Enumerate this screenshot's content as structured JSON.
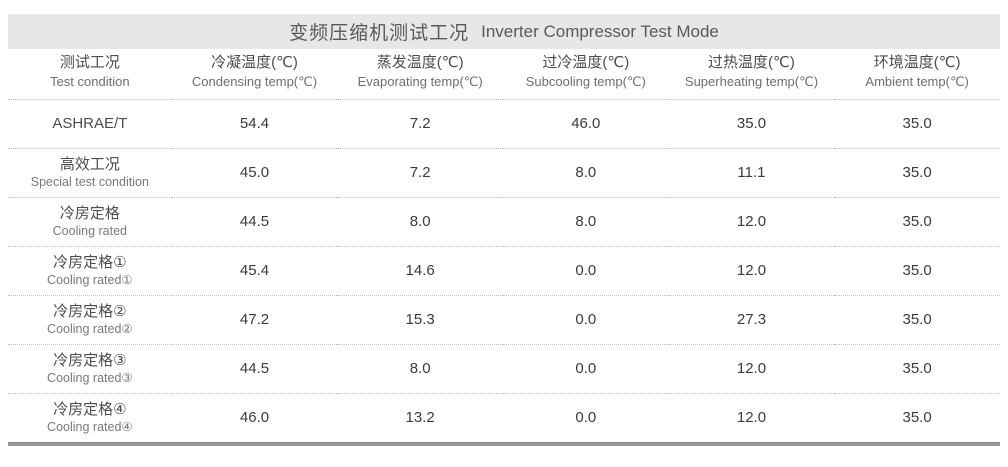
{
  "title": {
    "zh": "变频压缩机测试工况",
    "en": "Inverter Compressor Test Mode"
  },
  "table": {
    "columns": [
      {
        "zh": "测试工况",
        "en": "Test condition"
      },
      {
        "zh": "冷凝温度(℃)",
        "en": "Condensing temp(℃)"
      },
      {
        "zh": "蒸发温度(℃)",
        "en": "Evaporating temp(℃)"
      },
      {
        "zh": "过冷温度(℃)",
        "en": "Subcooling temp(℃)"
      },
      {
        "zh": "过热温度(℃)",
        "en": "Superheating temp(℃)"
      },
      {
        "zh": "环境温度(℃)",
        "en": "Ambient temp(℃)"
      }
    ],
    "rows": [
      {
        "label_zh": "ASHRAE/T",
        "label_en": "",
        "values": [
          "54.4",
          "7.2",
          "46.0",
          "35.0",
          "35.0"
        ]
      },
      {
        "label_zh": "高效工况",
        "label_en": "Special test condition",
        "values": [
          "45.0",
          "7.2",
          "8.0",
          "11.1",
          "35.0"
        ]
      },
      {
        "label_zh": "冷房定格",
        "label_en": "Cooling rated",
        "values": [
          "44.5",
          "8.0",
          "8.0",
          "12.0",
          "35.0"
        ]
      },
      {
        "label_zh": "冷房定格①",
        "label_en": "Cooling rated①",
        "values": [
          "45.4",
          "14.6",
          "0.0",
          "12.0",
          "35.0"
        ]
      },
      {
        "label_zh": "冷房定格②",
        "label_en": "Cooling rated②",
        "values": [
          "47.2",
          "15.3",
          "0.0",
          "27.3",
          "35.0"
        ]
      },
      {
        "label_zh": "冷房定格③",
        "label_en": "Cooling rated③",
        "values": [
          "44.5",
          "8.0",
          "0.0",
          "12.0",
          "35.0"
        ]
      },
      {
        "label_zh": "冷房定格④",
        "label_en": "Cooling rated④",
        "values": [
          "46.0",
          "13.2",
          "0.0",
          "12.0",
          "35.0"
        ]
      }
    ]
  },
  "colors": {
    "title_bar_bg": "#e7e7e9",
    "title_text": "#58595b",
    "header_text": "#4d4d4f",
    "sub_text": "#6d6e71",
    "value_text": "#3b3b3d",
    "dotted_rule": "#bfbfbf",
    "bottom_bar": "#97999c"
  }
}
